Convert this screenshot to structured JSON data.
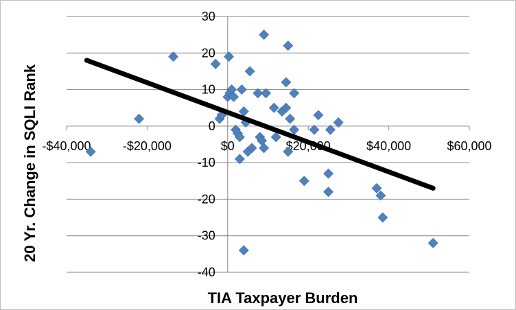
{
  "chart_data": {
    "type": "scatter",
    "title": "",
    "xlabel": "TIA Taxpayer Burden",
    "ylabel": "20 Yr. Change in SQLI Rank",
    "xlim": [
      -40000,
      60000
    ],
    "ylim": [
      -40,
      30
    ],
    "x_ticks": [
      -40000,
      -20000,
      0,
      20000,
      40000,
      60000
    ],
    "x_tick_labels": [
      "-$40,000",
      "-$20,000",
      "$0",
      "$20,000",
      "$40,000",
      "$60,000"
    ],
    "y_ticks": [
      -40,
      -30,
      -20,
      -10,
      0,
      10,
      20,
      30
    ],
    "y_tick_labels": [
      "-40",
      "-30",
      "-20",
      "-10",
      "0",
      "10",
      "20",
      "30"
    ],
    "grid": "horizontal",
    "legend": "none",
    "marker_color": "#4f81bd",
    "trendline_color": "#000000",
    "series": [
      {
        "values": [
          {
            "x": -34000,
            "y": -7
          },
          {
            "x": -22000,
            "y": 2
          },
          {
            "x": -13500,
            "y": 19
          },
          {
            "x": -3000,
            "y": 17
          },
          {
            "x": -2000,
            "y": 2
          },
          {
            "x": -1500,
            "y": 3
          },
          {
            "x": 0,
            "y": 8
          },
          {
            "x": 300,
            "y": 19
          },
          {
            "x": 500,
            "y": 9
          },
          {
            "x": 1000,
            "y": 10
          },
          {
            "x": 1500,
            "y": 8
          },
          {
            "x": 2000,
            "y": -1
          },
          {
            "x": 2500,
            "y": -2
          },
          {
            "x": 3000,
            "y": -3
          },
          {
            "x": 3000,
            "y": -9
          },
          {
            "x": 3500,
            "y": 10
          },
          {
            "x": 4000,
            "y": 4
          },
          {
            "x": 4000,
            "y": -34
          },
          {
            "x": 4500,
            "y": 1
          },
          {
            "x": 5000,
            "y": -7
          },
          {
            "x": 5500,
            "y": 15
          },
          {
            "x": 6000,
            "y": -6
          },
          {
            "x": 7500,
            "y": 9
          },
          {
            "x": 8000,
            "y": -3
          },
          {
            "x": 8500,
            "y": -4
          },
          {
            "x": 9000,
            "y": -6
          },
          {
            "x": 9000,
            "y": 25
          },
          {
            "x": 9500,
            "y": 9
          },
          {
            "x": 11500,
            "y": 5
          },
          {
            "x": 12000,
            "y": -3
          },
          {
            "x": 13500,
            "y": 4
          },
          {
            "x": 14500,
            "y": 5
          },
          {
            "x": 14500,
            "y": 12
          },
          {
            "x": 15000,
            "y": 22
          },
          {
            "x": 15000,
            "y": -7
          },
          {
            "x": 15500,
            "y": 2
          },
          {
            "x": 16500,
            "y": 9
          },
          {
            "x": 16500,
            "y": -1
          },
          {
            "x": 19000,
            "y": -15
          },
          {
            "x": 21500,
            "y": -1
          },
          {
            "x": 22500,
            "y": 3
          },
          {
            "x": 25000,
            "y": -13
          },
          {
            "x": 25000,
            "y": -18
          },
          {
            "x": 25500,
            "y": -1
          },
          {
            "x": 27500,
            "y": 1
          },
          {
            "x": 37000,
            "y": -17
          },
          {
            "x": 38000,
            "y": -19
          },
          {
            "x": 38500,
            "y": -25
          },
          {
            "x": 51000,
            "y": -32
          }
        ]
      }
    ],
    "trendline": {
      "x": [
        -35000,
        51000
      ],
      "y": [
        18,
        -17
      ]
    }
  }
}
